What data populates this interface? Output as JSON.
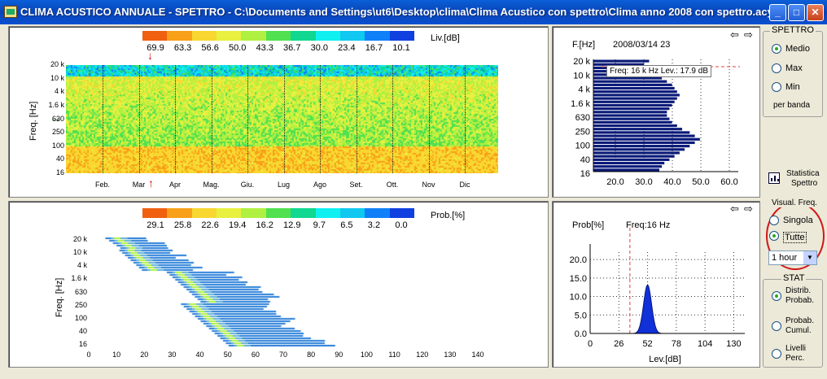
{
  "window": {
    "title": "CLIMA ACUSTICO ANNUALE  - SPETTRO - C:\\Documents and Settings\\ut6\\Desktop\\clima\\Clima Acustico con spettro\\Clima anno 2008 con spettro.acy",
    "minimize": "_",
    "maximize": "□",
    "close": "✕"
  },
  "colors": {
    "scale": [
      "#f06010",
      "#f8a018",
      "#f8d830",
      "#e8f040",
      "#b0f040",
      "#50e050",
      "#10d890",
      "#10f0f0",
      "#10c8f0",
      "#1080f8",
      "#1040e0"
    ],
    "bar_fill": "#0a1a78",
    "title_bar": "#0844b8"
  },
  "spectrogram": {
    "legend_values": [
      "69.9",
      "63.3",
      "56.6",
      "50.0",
      "43.3",
      "36.7",
      "30.0",
      "23.4",
      "16.7",
      "10.1"
    ],
    "legend_unit": "Liv.[dB]",
    "ylabel": "Freq. [Hz]",
    "yticks": [
      "20 k",
      "10 k",
      "4 k",
      "1.6 k",
      "630",
      "250",
      "100",
      "40",
      "16"
    ],
    "months": [
      "Feb.",
      "Mar",
      "Apr",
      "Mag.",
      "Giu.",
      "Lug",
      "Ago",
      "Set.",
      "Ott.",
      "Nov",
      "Dic"
    ]
  },
  "spectrum": {
    "flabel": "F.[Hz]",
    "timestamp": "2008/03/14 23",
    "tooltip": "Freq: 16 k Hz Lev.: 17.9 dB",
    "yticks": [
      "20 k",
      "10 k",
      "4 k",
      "1.6 k",
      "630",
      "250",
      "100",
      "40",
      "16"
    ],
    "xticks": [
      "20.0",
      "30.0",
      "40.0",
      "50.0",
      "60.0"
    ],
    "nav_left": "⇦",
    "nav_right": "⇨"
  },
  "probmap": {
    "legend_values": [
      "29.1",
      "25.8",
      "22.6",
      "19.4",
      "16.2",
      "12.9",
      "9.7",
      "6.5",
      "3.2",
      "0.0"
    ],
    "legend_unit": "Prob.[%]",
    "ylabel": "Freq. [Hz]",
    "yticks": [
      "20 k",
      "10 k",
      "4 k",
      "1.6 k",
      "630",
      "250",
      "100",
      "40",
      "16"
    ],
    "xticks": [
      "0",
      "10",
      "20",
      "30",
      "40",
      "50",
      "60",
      "70",
      "80",
      "90",
      "100",
      "110",
      "120",
      "130",
      "140"
    ]
  },
  "distribution": {
    "ylabel": "Prob[%]",
    "freq_label": "Freq:16 Hz",
    "yticks": [
      "20.0",
      "15.0",
      "10.0",
      "5.0",
      "0.0"
    ],
    "xticks": [
      "0",
      "26",
      "52",
      "78",
      "104",
      "130"
    ],
    "xlabel": "Lev.[dB]",
    "nav_left": "⇦",
    "nav_right": "⇨"
  },
  "controls": {
    "spettro_group": "SPETTRO",
    "medio": "Medio",
    "max": "Max",
    "min": "Min",
    "per_banda": "per banda",
    "statistica": "Statistica",
    "spettro": "Spettro",
    "visual_freq_group": "Visual. Freq.",
    "singola": "Singola",
    "tutte": "Tutte",
    "interval_value": "1 hour",
    "stat_group": "STAT",
    "distrib1": "Distrib.",
    "distrib2": "Probab.",
    "cumul1": "Probab.",
    "cumul2": "Cumul.",
    "livelli1": "Livelli",
    "livelli2": "Perc."
  }
}
